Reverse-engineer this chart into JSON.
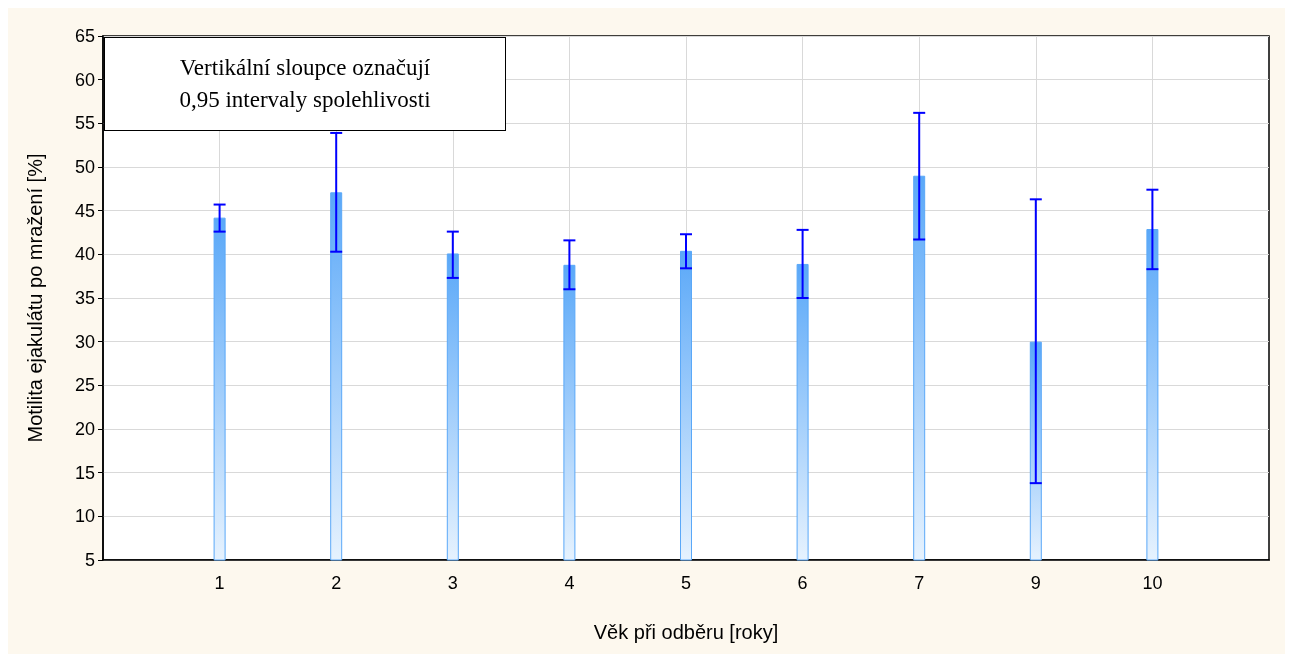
{
  "chart_data": {
    "type": "bar",
    "categories": [
      "1",
      "2",
      "3",
      "4",
      "5",
      "6",
      "7",
      "9",
      "10"
    ],
    "values": [
      44.2,
      47.1,
      40.1,
      38.8,
      40.4,
      38.9,
      49.0,
      30.0,
      42.9
    ],
    "errors": [
      [
        42.6,
        45.7
      ],
      [
        40.3,
        53.9
      ],
      [
        37.3,
        42.6
      ],
      [
        36.0,
        41.6
      ],
      [
        38.4,
        42.3
      ],
      [
        35.0,
        42.8
      ],
      [
        41.7,
        56.2
      ],
      [
        13.8,
        46.3
      ],
      [
        38.3,
        47.4
      ]
    ],
    "color": "#5aa8f8",
    "xlabel": "Věk při odběru [roky]",
    "ylabel": "Motilita ejakulátu po mražení [%]",
    "annotations": [
      "Vertikální sloupce označují\n0,95 intervaly spolehlivosti"
    ],
    "ylim": [
      5,
      65
    ],
    "yticks": [
      5,
      10,
      15,
      20,
      25,
      30,
      35,
      40,
      45,
      50,
      55,
      60,
      65
    ],
    "grid": true
  }
}
